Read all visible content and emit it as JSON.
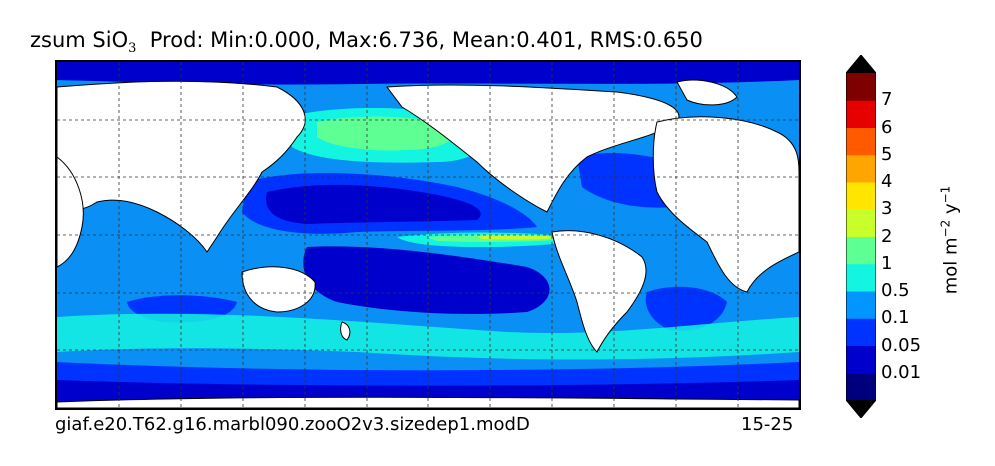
{
  "title": {
    "var_main": "zsum SiO",
    "var_sub": "3",
    "stats": "Prod: Min:0.000, Max:6.736, Mean:0.401, RMS:0.650"
  },
  "footer": {
    "case_name": "giaf.e20.T62.g16.marbl090.zooO2v3.sizedep1.modD",
    "years": "15-25"
  },
  "colorbar": {
    "units_prefix": "mol m",
    "units_exp1": "−2",
    "units_mid": " y",
    "units_exp2": "−1",
    "levels": [
      "0.01",
      "0.05",
      "0.1",
      "0.5",
      "1",
      "2",
      "3",
      "4",
      "5",
      "6",
      "7"
    ],
    "colors": [
      "#00007f",
      "#0000cd",
      "#0033ff",
      "#0095ff",
      "#14f5e1",
      "#5eff93",
      "#c8ff2a",
      "#ffe500",
      "#ffa500",
      "#ff5a00",
      "#e60000",
      "#7f0000"
    ],
    "extend_low_color": "#000000",
    "extend_high_color": "#000000"
  },
  "map": {
    "projection": "global lon-lat",
    "gridlines": "dashed",
    "land_color": "#ffffff",
    "ocean_background_level": "0.1-0.5"
  }
}
